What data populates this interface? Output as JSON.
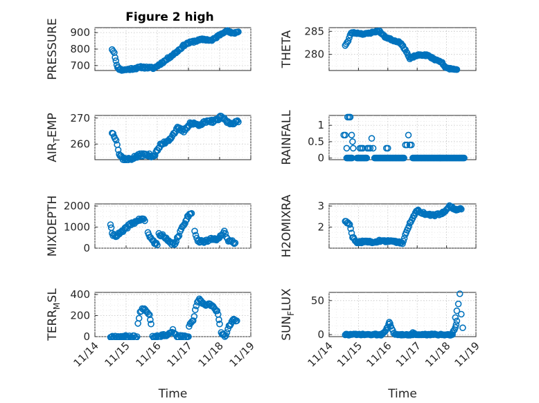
{
  "figure_title": "Figure 2 high",
  "colors": {
    "marker": "#0072BD",
    "axis": "#262626",
    "grid": "#c4c4c4"
  },
  "chart_data": [
    {
      "type": "scatter",
      "title": "Figure 2 high",
      "ylabel": "PRESSURE",
      "ylabel_sub": "",
      "xlabel": "",
      "ylim": [
        670,
        930
      ],
      "yticks": [
        700,
        800,
        900
      ],
      "xlim": [
        0,
        5
      ],
      "x": [],
      "y": [],
      "grid": true,
      "minor_grid": true,
      "segments": [
        [
          [
            0.55,
            800
          ],
          [
            0.62,
            780
          ],
          [
            0.7,
            700
          ],
          [
            0.78,
            680
          ],
          [
            0.86,
            673
          ],
          [
            1.0,
            675
          ],
          [
            1.5,
            690
          ],
          [
            1.9,
            685
          ],
          [
            2.25,
            730
          ],
          [
            2.6,
            780
          ],
          [
            2.9,
            830
          ],
          [
            3.2,
            848
          ],
          [
            3.5,
            860
          ],
          [
            3.75,
            852
          ],
          [
            4.1,
            900
          ],
          [
            4.2,
            913
          ],
          [
            4.4,
            895
          ],
          [
            4.6,
            905
          ]
        ]
      ],
      "step": 0.03,
      "jitter": 6,
      "seed": 11
    },
    {
      "type": "scatter",
      "title": "",
      "ylabel": "THETA",
      "ylabel_sub": "",
      "xlabel": "",
      "ylim": [
        276.5,
        285.8
      ],
      "yticks": [
        280,
        285
      ],
      "xlim": [
        0,
        5
      ],
      "x": [],
      "y": [],
      "grid": true,
      "minor_grid": true,
      "segments": [
        [
          [
            0.55,
            282
          ],
          [
            0.65,
            282.9
          ],
          [
            0.75,
            284.7
          ],
          [
            1.0,
            284.6
          ],
          [
            1.2,
            284.4
          ],
          [
            1.5,
            284.8
          ],
          [
            1.7,
            285.1
          ],
          [
            1.9,
            283.8
          ],
          [
            2.2,
            283
          ],
          [
            2.4,
            282.7
          ],
          [
            2.6,
            281
          ],
          [
            2.75,
            279
          ],
          [
            2.9,
            279.6
          ],
          [
            3.1,
            279.9
          ],
          [
            3.35,
            279.8
          ],
          [
            3.6,
            278.9
          ],
          [
            3.85,
            278.3
          ],
          [
            3.95,
            277.1
          ],
          [
            4.2,
            276.8
          ],
          [
            4.35,
            276.7
          ]
        ]
      ],
      "step": 0.03,
      "jitter": 0.15,
      "seed": 23
    },
    {
      "type": "scatter",
      "title": "",
      "ylabel": "AIR",
      "ylabel_sub": "T",
      "ylabel_tail": "EMP",
      "xlabel": "",
      "ylim": [
        254,
        271
      ],
      "yticks": [
        260,
        270
      ],
      "xlim": [
        0,
        5
      ],
      "x": [],
      "y": [],
      "grid": true,
      "minor_grid": true,
      "segments": [
        [
          [
            0.55,
            264.5
          ],
          [
            0.68,
            262
          ],
          [
            0.78,
            256
          ],
          [
            0.9,
            254.5
          ],
          [
            1.05,
            254
          ],
          [
            1.3,
            255
          ],
          [
            1.5,
            256
          ],
          [
            1.9,
            255.5
          ],
          [
            2.1,
            259.5
          ],
          [
            2.4,
            262
          ],
          [
            2.65,
            266
          ],
          [
            2.85,
            265
          ],
          [
            3.05,
            268
          ],
          [
            3.3,
            267.5
          ],
          [
            3.6,
            268.5
          ],
          [
            3.9,
            269
          ],
          [
            4.05,
            270.5
          ],
          [
            4.3,
            268
          ],
          [
            4.6,
            268.5
          ]
        ]
      ],
      "step": 0.03,
      "jitter": 0.6,
      "seed": 37
    },
    {
      "type": "scatter",
      "title": "",
      "ylabel": "RAINFALL",
      "ylabel_sub": "",
      "xlabel": "",
      "ylim": [
        -0.05,
        1.3
      ],
      "yticks": [
        0,
        0.5,
        1
      ],
      "ytick_labels": [
        "0",
        "0.5",
        "1"
      ],
      "xlim": [
        0,
        5
      ],
      "x": [
        0.5,
        0.55,
        0.6,
        0.63,
        0.68,
        0.72,
        0.77,
        0.8,
        0.82,
        1.05,
        1.1,
        1.15,
        1.3,
        1.35,
        1.4,
        1.45,
        1.5,
        1.95,
        2.0,
        2.6,
        2.65,
        2.7,
        2.75,
        2.8
      ],
      "y": [
        0.7,
        0.7,
        0.3,
        1.25,
        1.25,
        1.25,
        0.7,
        0.5,
        0.3,
        0.3,
        0.3,
        0.3,
        0.3,
        0.3,
        0.3,
        0.6,
        0.3,
        0.3,
        0.3,
        0.4,
        0.4,
        0.7,
        0.4,
        0.4
      ],
      "grid": true,
      "minor_grid": true,
      "segments": [
        [
          [
            0.6,
            0
          ],
          [
            0.78,
            0
          ]
        ],
        [
          [
            0.95,
            0
          ],
          [
            1.28,
            0
          ]
        ],
        [
          [
            1.55,
            0
          ],
          [
            2.55,
            0
          ]
        ],
        [
          [
            2.85,
            0
          ],
          [
            4.6,
            0
          ]
        ]
      ],
      "step": 0.03,
      "jitter": 0,
      "seed": 5
    },
    {
      "type": "scatter",
      "title": "",
      "ylabel": "MIXDEPTH",
      "ylabel_sub": "",
      "xlabel": "",
      "ylim": [
        0,
        2100
      ],
      "yticks": [
        0,
        1000,
        2000
      ],
      "xlim": [
        0,
        5
      ],
      "x": [],
      "y": [],
      "grid": true,
      "minor_grid": true,
      "segments": [
        [
          [
            0.5,
            1150
          ],
          [
            0.55,
            650
          ],
          [
            0.7,
            600
          ],
          [
            0.9,
            800
          ],
          [
            1.1,
            1100
          ],
          [
            1.3,
            1250
          ],
          [
            1.5,
            1400
          ],
          [
            1.6,
            1300
          ]
        ],
        [
          [
            1.7,
            700
          ],
          [
            1.85,
            350
          ],
          [
            2.0,
            150
          ]
        ],
        [
          [
            2.05,
            700
          ],
          [
            2.2,
            550
          ],
          [
            2.4,
            250
          ],
          [
            2.55,
            200
          ],
          [
            2.7,
            600
          ],
          [
            2.8,
            1000
          ],
          [
            3.0,
            1550
          ],
          [
            3.1,
            1650
          ]
        ],
        [
          [
            3.2,
            850
          ],
          [
            3.3,
            350
          ],
          [
            3.5,
            300
          ],
          [
            3.7,
            400
          ],
          [
            3.9,
            450
          ],
          [
            4.05,
            600
          ],
          [
            4.15,
            750
          ],
          [
            4.25,
            400
          ],
          [
            4.5,
            250
          ]
        ]
      ],
      "step": 0.03,
      "jitter": 70,
      "seed": 41
    },
    {
      "type": "scatter",
      "title": "",
      "ylabel": "H2OMIXRA",
      "ylabel_sub": "",
      "xlabel": "",
      "ylim": [
        1.0,
        3.1
      ],
      "yticks": [
        2,
        3
      ],
      "xlim": [
        0,
        5
      ],
      "x": [],
      "y": [],
      "grid": true,
      "minor_grid": true,
      "segments": [
        [
          [
            0.55,
            2.3
          ],
          [
            0.7,
            2.1
          ],
          [
            0.8,
            1.5
          ],
          [
            0.95,
            1.3
          ],
          [
            1.5,
            1.3
          ],
          [
            1.8,
            1.35
          ],
          [
            2.3,
            1.3
          ],
          [
            2.5,
            1.25
          ],
          [
            2.75,
            2.2
          ],
          [
            3.0,
            2.8
          ],
          [
            3.3,
            2.6
          ],
          [
            3.6,
            2.55
          ],
          [
            3.9,
            2.7
          ],
          [
            4.1,
            3.0
          ],
          [
            4.3,
            2.85
          ],
          [
            4.5,
            2.85
          ]
        ]
      ],
      "step": 0.03,
      "jitter": 0.05,
      "seed": 59
    },
    {
      "type": "scatter",
      "title": "",
      "ylabel": "TERR",
      "ylabel_sub": "M",
      "ylabel_tail": "SL",
      "xlabel": "Time",
      "ylim": [
        0,
        420
      ],
      "yticks": [
        0,
        200,
        400
      ],
      "xlim": [
        0,
        5
      ],
      "x": [],
      "y": [],
      "grid": true,
      "minor_grid": true,
      "xticks": [
        0,
        1,
        2,
        3,
        4,
        5
      ],
      "xtick_labels": [
        "11/14",
        "11/15",
        "11/16",
        "11/17",
        "11/18",
        "11/19"
      ],
      "segments": [
        [
          [
            0.5,
            0
          ],
          [
            1.35,
            0
          ]
        ],
        [
          [
            1.38,
            120
          ],
          [
            1.45,
            230
          ],
          [
            1.55,
            270
          ],
          [
            1.65,
            250
          ],
          [
            1.75,
            210
          ],
          [
            1.8,
            120
          ]
        ],
        [
          [
            1.85,
            0
          ],
          [
            2.35,
            20
          ],
          [
            2.5,
            60
          ],
          [
            2.6,
            10
          ],
          [
            2.7,
            0
          ],
          [
            3.0,
            0
          ]
        ],
        [
          [
            3.02,
            100
          ],
          [
            3.15,
            150
          ],
          [
            3.25,
            300
          ],
          [
            3.35,
            350
          ],
          [
            3.5,
            300
          ],
          [
            3.7,
            310
          ],
          [
            3.85,
            260
          ],
          [
            3.95,
            220
          ],
          [
            4.0,
            120
          ]
        ],
        [
          [
            4.05,
            30
          ],
          [
            4.2,
            0
          ],
          [
            4.3,
            100
          ],
          [
            4.45,
            170
          ],
          [
            4.55,
            150
          ]
        ]
      ],
      "step": 0.03,
      "jitter": 12,
      "seed": 67
    },
    {
      "type": "scatter",
      "title": "",
      "ylabel": "SUN",
      "ylabel_sub": "F",
      "ylabel_tail": "LUX",
      "xlabel": "Time",
      "ylim": [
        -3,
        62
      ],
      "yticks": [
        0,
        50
      ],
      "xlim": [
        0,
        5
      ],
      "x": [
        2.85,
        2.9,
        4.3,
        4.35,
        4.4,
        4.45,
        4.5,
        4.55
      ],
      "y": [
        3,
        2,
        25,
        35,
        45,
        60,
        30,
        10
      ],
      "grid": true,
      "minor_grid": true,
      "xticks": [
        0,
        1,
        2,
        3,
        4,
        5
      ],
      "xtick_labels": [
        "11/14",
        "11/15",
        "11/16",
        "11/17",
        "11/18",
        "11/19"
      ],
      "segments": [
        [
          [
            0.55,
            0
          ],
          [
            1.8,
            0
          ]
        ],
        [
          [
            1.8,
            1
          ],
          [
            1.9,
            5
          ],
          [
            2.0,
            12
          ],
          [
            2.05,
            19
          ],
          [
            2.1,
            12
          ],
          [
            2.2,
            2
          ]
        ],
        [
          [
            2.25,
            0
          ],
          [
            4.2,
            0
          ]
        ],
        [
          [
            4.2,
            2
          ],
          [
            4.3,
            10
          ],
          [
            4.35,
            20
          ]
        ]
      ],
      "step": 0.03,
      "jitter": 1,
      "seed": 73
    }
  ]
}
